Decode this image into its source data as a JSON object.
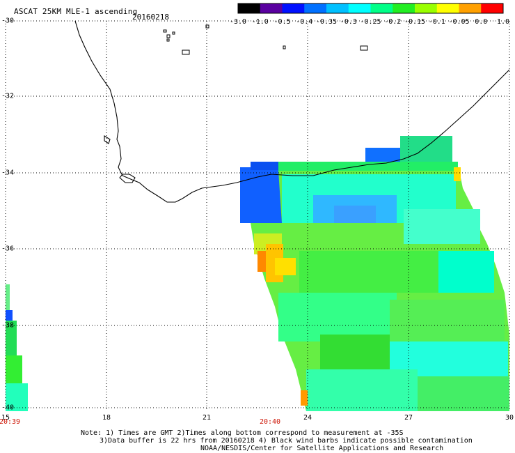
{
  "header": {
    "title": "ASCAT 25KM MLE-1 ascending",
    "date": "20160218"
  },
  "colorbar": {
    "labels": [
      "-3.0",
      "-1.0",
      "-0.5",
      "-0.4",
      "-0.35",
      "-0.3",
      "-0.25",
      "-0.2",
      "-0.15",
      "-0.1",
      "-0.05",
      "0.0",
      "1.0"
    ],
    "colors": [
      "#000000",
      "#5a00a0",
      "#0010ff",
      "#0070ff",
      "#00c0ff",
      "#00ffff",
      "#00ff88",
      "#22ee22",
      "#99ff00",
      "#ffff00",
      "#ffa000",
      "#ff0000"
    ]
  },
  "map": {
    "latitude_labels": [
      "-30",
      "-32",
      "-34",
      "-36",
      "-38",
      "-40"
    ],
    "longitude_labels": [
      "15",
      "18",
      "21",
      "24",
      "27",
      "30"
    ],
    "time_labels": [
      "20:39",
      "20:40"
    ]
  },
  "notes": {
    "line1": "Note: 1) Times are GMT 2)Times along bottom correspond to measurement at -35S",
    "line2": "3)Data buffer is 22 hrs from 20160218 4) Black wind barbs indicate possible contamination",
    "line3": "NOAA/NESDIS/Center for Satellite Applications and Research"
  }
}
